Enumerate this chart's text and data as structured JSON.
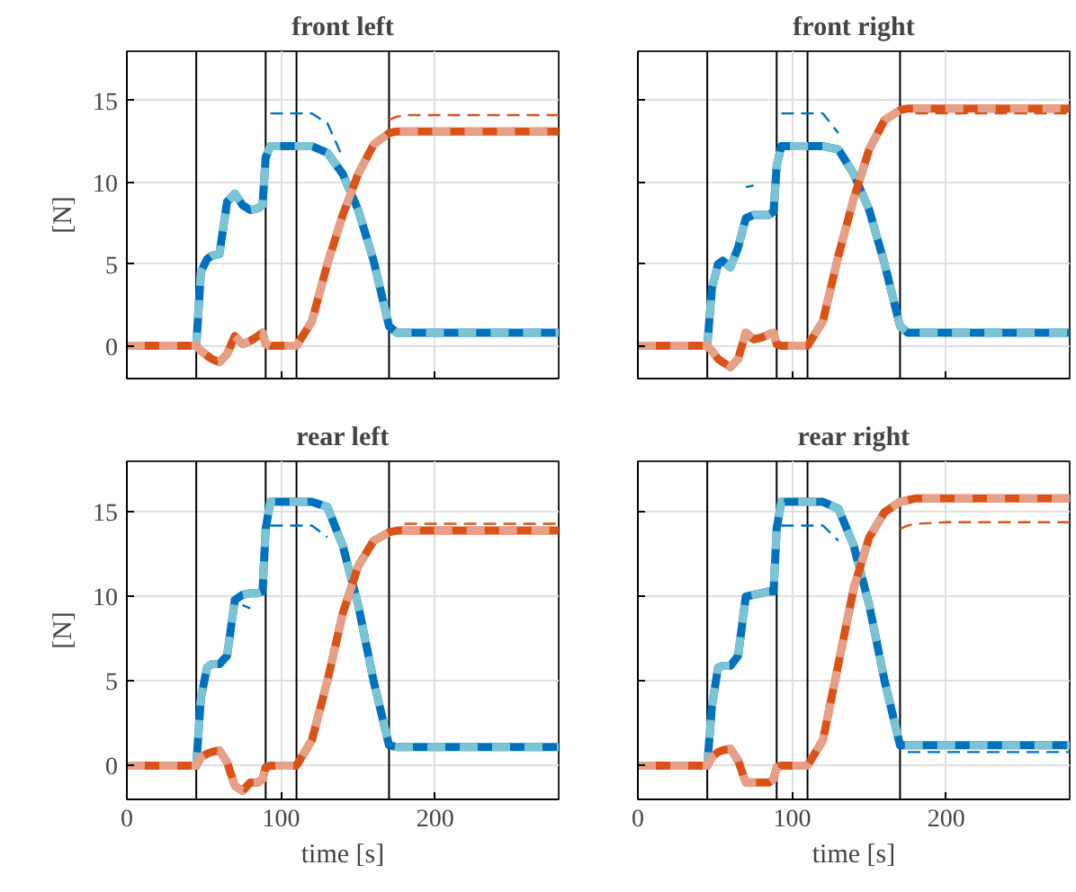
{
  "chart_data": [
    {
      "type": "line",
      "title": "front left",
      "ylabel": "[N]",
      "tick_labels": "y",
      "grid": true,
      "xlim": [
        0,
        280
      ],
      "ylim": [
        -2,
        18
      ],
      "xticks": [
        0,
        100,
        200
      ],
      "yticks": [
        0,
        5,
        10,
        15
      ],
      "x": [
        0,
        45,
        48,
        52,
        55,
        60,
        65,
        70,
        75,
        80,
        85,
        88,
        90,
        93,
        100,
        110,
        120,
        130,
        140,
        150,
        160,
        170,
        175,
        180,
        200,
        240,
        280
      ],
      "ref_lines": [
        {
          "axis": "x",
          "value": 45,
          "color": "#000000"
        },
        {
          "axis": "x",
          "value": 90,
          "color": "#000000"
        },
        {
          "axis": "x",
          "value": 110,
          "color": "#000000"
        },
        {
          "axis": "x",
          "value": 170,
          "color": "#000000"
        }
      ],
      "series": [
        {
          "color": "#0072bd",
          "line_style": "solid",
          "values": [
            0,
            0,
            4.5,
            5.3,
            5.5,
            5.6,
            8.8,
            9.3,
            8.6,
            8.3,
            8.4,
            8.6,
            11.5,
            12.2,
            12.2,
            12.2,
            12.2,
            11.8,
            10.5,
            8.3,
            5.2,
            1.2,
            0.8,
            0.8,
            0.8,
            0.8,
            0.8
          ]
        },
        {
          "color": "#7cc3d3",
          "line_style": "dashed",
          "values": [
            0,
            0,
            4.5,
            5.3,
            5.5,
            5.6,
            8.8,
            9.3,
            8.6,
            8.3,
            8.4,
            8.6,
            11.5,
            12.2,
            12.2,
            12.2,
            12.2,
            11.8,
            10.5,
            8.3,
            5.2,
            1.2,
            0.8,
            0.8,
            0.8,
            0.8,
            0.8
          ]
        },
        {
          "color": "#0072bd",
          "line_style": "dashed",
          "values": [
            null,
            null,
            null,
            null,
            null,
            null,
            null,
            null,
            null,
            null,
            null,
            null,
            null,
            14.2,
            14.2,
            14.2,
            14.2,
            13.6,
            11.5,
            null,
            null,
            null,
            null,
            null,
            null,
            null,
            null
          ]
        },
        {
          "color": "#d95319",
          "line_style": "solid",
          "values": [
            0,
            0,
            -0.3,
            -0.6,
            -0.8,
            -1.0,
            -0.5,
            0.6,
            0.1,
            0.3,
            0.6,
            0.8,
            0.1,
            0,
            0,
            0,
            1.5,
            5,
            8,
            10.5,
            12.3,
            13,
            13.1,
            13.1,
            13.1,
            13.1,
            13.1
          ]
        },
        {
          "color": "#e6a088",
          "line_style": "dashed",
          "values": [
            0,
            0,
            -0.3,
            -0.6,
            -0.8,
            -1.0,
            -0.5,
            0.6,
            0.1,
            0.3,
            0.6,
            0.8,
            0.1,
            0,
            0,
            0,
            1.5,
            5,
            8,
            10.5,
            12.3,
            13,
            13.1,
            13.1,
            13.1,
            13.1,
            13.1
          ]
        },
        {
          "color": "#d95319",
          "line_style": "dashed",
          "values": [
            null,
            null,
            null,
            null,
            null,
            null,
            null,
            null,
            null,
            null,
            null,
            null,
            null,
            null,
            null,
            null,
            null,
            null,
            null,
            null,
            null,
            13.8,
            14.0,
            14.1,
            14.1,
            14.1,
            14.1
          ]
        }
      ]
    },
    {
      "type": "line",
      "title": "front right",
      "tick_labels": false,
      "grid": true,
      "xlim": [
        0,
        280
      ],
      "ylim": [
        -2,
        18
      ],
      "xticks": [
        0,
        100,
        200
      ],
      "yticks": [
        0,
        5,
        10,
        15
      ],
      "x": [
        0,
        45,
        48,
        52,
        55,
        60,
        65,
        70,
        75,
        80,
        85,
        88,
        90,
        93,
        100,
        110,
        120,
        130,
        140,
        150,
        160,
        170,
        175,
        180,
        200,
        240,
        280
      ],
      "ref_lines": [
        {
          "axis": "x",
          "value": 45,
          "color": "#000000"
        },
        {
          "axis": "x",
          "value": 90,
          "color": "#000000"
        },
        {
          "axis": "x",
          "value": 110,
          "color": "#000000"
        },
        {
          "axis": "x",
          "value": 170,
          "color": "#000000"
        }
      ],
      "series": [
        {
          "color": "#0072bd",
          "line_style": "solid",
          "values": [
            0,
            0,
            3.5,
            5.0,
            5.2,
            4.8,
            6.0,
            7.8,
            8.0,
            8.0,
            8.0,
            8.2,
            11.0,
            12.2,
            12.2,
            12.2,
            12.2,
            12.0,
            10.5,
            8.3,
            5.0,
            1.2,
            0.8,
            0.8,
            0.8,
            0.8,
            0.8
          ]
        },
        {
          "color": "#7cc3d3",
          "line_style": "dashed",
          "values": [
            0,
            0,
            3.5,
            5.0,
            5.2,
            4.8,
            6.0,
            7.8,
            8.0,
            8.0,
            8.0,
            8.2,
            11.0,
            12.2,
            12.2,
            12.2,
            12.2,
            12.0,
            10.5,
            8.3,
            5.0,
            1.2,
            0.8,
            0.8,
            0.8,
            0.8,
            0.8
          ]
        },
        {
          "color": "#0072bd",
          "line_style": "dashed",
          "values": [
            null,
            null,
            null,
            null,
            null,
            null,
            null,
            9.7,
            9.8,
            null,
            null,
            null,
            null,
            14.2,
            14.2,
            14.2,
            14.2,
            13.0,
            null,
            null,
            null,
            null,
            null,
            null,
            null,
            null,
            null
          ]
        },
        {
          "color": "#d95319",
          "line_style": "solid",
          "values": [
            0,
            0,
            -0.3,
            -0.8,
            -1.0,
            -1.3,
            -0.8,
            0.8,
            0.4,
            0.5,
            0.7,
            0.8,
            0.1,
            0,
            0,
            0,
            1.5,
            5.5,
            9,
            12,
            13.8,
            14.4,
            14.5,
            14.5,
            14.5,
            14.5,
            14.5
          ]
        },
        {
          "color": "#e6a088",
          "line_style": "dashed",
          "values": [
            0,
            0,
            -0.3,
            -0.8,
            -1.0,
            -1.3,
            -0.8,
            0.8,
            0.4,
            0.5,
            0.7,
            0.8,
            0.1,
            0,
            0,
            0,
            1.5,
            5.5,
            9,
            12,
            13.8,
            14.4,
            14.5,
            14.5,
            14.5,
            14.5,
            14.5
          ]
        },
        {
          "color": "#d95319",
          "line_style": "dashed",
          "values": [
            null,
            null,
            null,
            null,
            null,
            null,
            null,
            null,
            null,
            null,
            null,
            null,
            null,
            null,
            null,
            null,
            null,
            null,
            null,
            null,
            null,
            null,
            null,
            14.2,
            14.2,
            14.2,
            14.2
          ]
        }
      ]
    },
    {
      "type": "line",
      "title": "rear left",
      "xlabel": "time [s]",
      "ylabel": "[N]",
      "grid": true,
      "xlim": [
        0,
        280
      ],
      "ylim": [
        -2,
        18
      ],
      "xticks": [
        0,
        100,
        200
      ],
      "yticks": [
        0,
        5,
        10,
        15
      ],
      "x": [
        0,
        45,
        48,
        52,
        55,
        60,
        65,
        70,
        75,
        80,
        85,
        88,
        90,
        93,
        100,
        110,
        120,
        130,
        140,
        150,
        160,
        170,
        175,
        180,
        200,
        240,
        280
      ],
      "ref_lines": [
        {
          "axis": "x",
          "value": 45,
          "color": "#000000"
        },
        {
          "axis": "x",
          "value": 90,
          "color": "#000000"
        },
        {
          "axis": "x",
          "value": 110,
          "color": "#000000"
        },
        {
          "axis": "x",
          "value": 170,
          "color": "#000000"
        }
      ],
      "series": [
        {
          "color": "#0072bd",
          "line_style": "solid",
          "values": [
            0,
            0,
            4.0,
            5.8,
            6.0,
            6.0,
            6.5,
            9.8,
            10.1,
            10.2,
            10.2,
            10.3,
            14.0,
            15.6,
            15.6,
            15.6,
            15.6,
            15.3,
            13.0,
            9.5,
            5.0,
            1.2,
            1.1,
            1.1,
            1.1,
            1.1,
            1.1
          ]
        },
        {
          "color": "#7cc3d3",
          "line_style": "dashed",
          "values": [
            0,
            0,
            4.0,
            5.8,
            6.0,
            6.0,
            6.5,
            9.8,
            10.1,
            10.2,
            10.2,
            10.3,
            14.0,
            15.6,
            15.6,
            15.6,
            15.6,
            15.3,
            13.0,
            9.5,
            5.0,
            1.2,
            1.1,
            1.1,
            1.1,
            1.1,
            1.1
          ]
        },
        {
          "color": "#0072bd",
          "line_style": "dashed",
          "values": [
            null,
            null,
            null,
            null,
            null,
            null,
            null,
            null,
            9.5,
            9.3,
            null,
            null,
            null,
            14.2,
            14.2,
            14.2,
            14.2,
            13.5,
            null,
            null,
            null,
            null,
            null,
            null,
            null,
            null,
            null
          ]
        },
        {
          "color": "#d95319",
          "line_style": "solid",
          "values": [
            0,
            0,
            0.5,
            0.7,
            0.8,
            0.9,
            0.2,
            -1.2,
            -1.5,
            -1.0,
            -1.0,
            -0.8,
            -0.1,
            0,
            0,
            0,
            1.5,
            5,
            9,
            11.8,
            13.3,
            13.8,
            13.9,
            13.9,
            13.9,
            13.9,
            13.9
          ]
        },
        {
          "color": "#e6a088",
          "line_style": "dashed",
          "values": [
            0,
            0,
            0.5,
            0.7,
            0.8,
            0.9,
            0.2,
            -1.2,
            -1.5,
            -1.0,
            -1.0,
            -0.8,
            -0.1,
            0,
            0,
            0,
            1.5,
            5,
            9,
            11.8,
            13.3,
            13.8,
            13.9,
            13.9,
            13.9,
            13.9,
            13.9
          ]
        },
        {
          "color": "#d95319",
          "line_style": "dashed",
          "values": [
            null,
            null,
            null,
            null,
            null,
            null,
            null,
            null,
            null,
            null,
            null,
            null,
            null,
            null,
            null,
            null,
            null,
            null,
            null,
            null,
            null,
            null,
            null,
            14.3,
            14.3,
            14.3,
            14.3
          ]
        }
      ]
    },
    {
      "type": "line",
      "title": "rear right",
      "xlabel": "time [s]",
      "tick_labels": "x",
      "grid": true,
      "xlim": [
        0,
        280
      ],
      "ylim": [
        -2,
        18
      ],
      "xticks": [
        0,
        100,
        200
      ],
      "yticks": [
        0,
        5,
        10,
        15
      ],
      "x": [
        0,
        45,
        48,
        52,
        55,
        60,
        65,
        70,
        75,
        80,
        85,
        88,
        90,
        93,
        100,
        110,
        120,
        130,
        140,
        150,
        160,
        170,
        175,
        180,
        200,
        240,
        280
      ],
      "ref_lines": [
        {
          "axis": "x",
          "value": 45,
          "color": "#000000"
        },
        {
          "axis": "x",
          "value": 90,
          "color": "#000000"
        },
        {
          "axis": "x",
          "value": 110,
          "color": "#000000"
        },
        {
          "axis": "x",
          "value": 170,
          "color": "#000000"
        }
      ],
      "series": [
        {
          "color": "#0072bd",
          "line_style": "solid",
          "values": [
            0,
            0,
            3.5,
            5.8,
            5.9,
            5.9,
            6.5,
            10.0,
            10.1,
            10.2,
            10.3,
            10.3,
            14.0,
            15.6,
            15.6,
            15.6,
            15.6,
            15.2,
            13.0,
            9.5,
            5.0,
            1.2,
            1.2,
            1.2,
            1.2,
            1.2,
            1.2
          ]
        },
        {
          "color": "#7cc3d3",
          "line_style": "dashed",
          "values": [
            0,
            0,
            3.5,
            5.8,
            5.9,
            5.9,
            6.5,
            10.0,
            10.1,
            10.2,
            10.3,
            10.3,
            14.0,
            15.6,
            15.6,
            15.6,
            15.6,
            15.2,
            13.0,
            9.5,
            5.0,
            1.2,
            1.2,
            1.2,
            1.2,
            1.2,
            1.2
          ]
        },
        {
          "color": "#0072bd",
          "line_style": "dashed",
          "values": [
            null,
            null,
            null,
            null,
            null,
            null,
            null,
            null,
            null,
            null,
            null,
            null,
            null,
            14.2,
            14.2,
            14.2,
            14.2,
            13.3,
            null,
            null,
            null,
            null,
            0.8,
            0.8,
            0.8,
            0.8,
            0.8
          ]
        },
        {
          "color": "#d95319",
          "line_style": "solid",
          "values": [
            0,
            0,
            0.5,
            0.8,
            0.9,
            1.0,
            0.3,
            -1.0,
            -1.0,
            -1.0,
            -1.0,
            -0.8,
            -0.1,
            0,
            0,
            0,
            1.5,
            6,
            10.5,
            13.5,
            15,
            15.6,
            15.7,
            15.8,
            15.8,
            15.8,
            15.8
          ]
        },
        {
          "color": "#e6a088",
          "line_style": "dashed",
          "values": [
            0,
            0,
            0.5,
            0.8,
            0.9,
            1.0,
            0.3,
            -1.0,
            -1.0,
            -1.0,
            -1.0,
            -0.8,
            -0.1,
            0,
            0,
            0,
            1.5,
            6,
            10.5,
            13.5,
            15,
            15.6,
            15.7,
            15.8,
            15.8,
            15.8,
            15.8
          ]
        },
        {
          "color": "#d95319",
          "line_style": "dashed",
          "values": [
            null,
            null,
            null,
            null,
            null,
            null,
            null,
            null,
            null,
            null,
            null,
            null,
            null,
            null,
            null,
            null,
            null,
            null,
            null,
            null,
            null,
            14.0,
            14.2,
            14.3,
            14.4,
            14.4,
            14.4
          ]
        }
      ]
    }
  ]
}
